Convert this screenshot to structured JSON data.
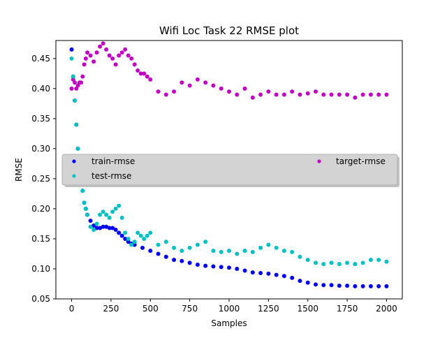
{
  "chart_data": {
    "type": "scatter",
    "title": "Wifi Loc Task 22 RMSE plot",
    "xlabel": "Samples",
    "ylabel": "RMSE",
    "xlim": [
      -100,
      2100
    ],
    "ylim": [
      0.05,
      0.48
    ],
    "xticks": [
      0,
      250,
      500,
      750,
      1000,
      1250,
      1500,
      1750,
      2000
    ],
    "yticks": [
      0.05,
      0.1,
      0.15,
      0.2,
      0.25,
      0.3,
      0.35,
      0.4,
      0.45
    ],
    "grid": false,
    "legend_position": "center",
    "series": [
      {
        "name": "train-rmse",
        "color": "#0000ee",
        "x": [
          0,
          10,
          20,
          30,
          40,
          50,
          60,
          70,
          80,
          90,
          100,
          120,
          140,
          160,
          180,
          200,
          220,
          240,
          260,
          280,
          300,
          320,
          340,
          360,
          380,
          400,
          450,
          500,
          550,
          600,
          650,
          700,
          750,
          800,
          850,
          900,
          950,
          1000,
          1050,
          1100,
          1150,
          1200,
          1250,
          1300,
          1350,
          1400,
          1450,
          1500,
          1550,
          1600,
          1650,
          1700,
          1750,
          1800,
          1850,
          1900,
          1950,
          2000
        ],
        "y": [
          0.465,
          0.42,
          0.38,
          0.34,
          0.3,
          0.27,
          0.25,
          0.23,
          0.21,
          0.2,
          0.19,
          0.18,
          0.172,
          0.168,
          0.168,
          0.17,
          0.17,
          0.168,
          0.168,
          0.165,
          0.16,
          0.155,
          0.15,
          0.145,
          0.142,
          0.14,
          0.135,
          0.13,
          0.125,
          0.12,
          0.115,
          0.113,
          0.11,
          0.107,
          0.105,
          0.104,
          0.103,
          0.102,
          0.1,
          0.097,
          0.094,
          0.093,
          0.092,
          0.09,
          0.088,
          0.085,
          0.08,
          0.077,
          0.074,
          0.073,
          0.073,
          0.072,
          0.072,
          0.071,
          0.071,
          0.071,
          0.071,
          0.071
        ]
      },
      {
        "name": "test-rmse",
        "color": "#00bfbf",
        "x": [
          0,
          10,
          20,
          30,
          40,
          50,
          60,
          70,
          80,
          90,
          100,
          120,
          140,
          160,
          180,
          200,
          220,
          240,
          260,
          280,
          300,
          320,
          340,
          360,
          380,
          400,
          420,
          440,
          460,
          480,
          500,
          550,
          600,
          650,
          700,
          750,
          800,
          850,
          900,
          950,
          1000,
          1050,
          1100,
          1150,
          1200,
          1250,
          1300,
          1350,
          1400,
          1450,
          1500,
          1550,
          1600,
          1650,
          1700,
          1750,
          1800,
          1850,
          1900,
          1950,
          2000
        ],
        "y": [
          0.45,
          0.42,
          0.38,
          0.34,
          0.3,
          0.27,
          0.25,
          0.23,
          0.21,
          0.2,
          0.19,
          0.17,
          0.165,
          0.175,
          0.19,
          0.195,
          0.19,
          0.185,
          0.195,
          0.2,
          0.205,
          0.185,
          0.16,
          0.15,
          0.14,
          0.145,
          0.16,
          0.155,
          0.15,
          0.155,
          0.16,
          0.14,
          0.145,
          0.135,
          0.13,
          0.135,
          0.14,
          0.145,
          0.13,
          0.128,
          0.13,
          0.125,
          0.13,
          0.128,
          0.135,
          0.14,
          0.135,
          0.13,
          0.128,
          0.12,
          0.115,
          0.11,
          0.108,
          0.11,
          0.108,
          0.11,
          0.108,
          0.11,
          0.115,
          0.115,
          0.112
        ]
      },
      {
        "name": "target-rmse",
        "color": "#bf00bf",
        "x": [
          0,
          10,
          20,
          30,
          40,
          50,
          60,
          70,
          80,
          90,
          100,
          120,
          140,
          160,
          180,
          200,
          220,
          240,
          260,
          280,
          300,
          320,
          340,
          360,
          380,
          400,
          420,
          440,
          460,
          480,
          500,
          550,
          600,
          650,
          700,
          750,
          800,
          850,
          900,
          950,
          1000,
          1050,
          1100,
          1150,
          1200,
          1250,
          1300,
          1350,
          1400,
          1450,
          1500,
          1550,
          1600,
          1650,
          1700,
          1750,
          1800,
          1850,
          1900,
          1950,
          2000
        ],
        "y": [
          0.4,
          0.415,
          0.41,
          0.4,
          0.405,
          0.41,
          0.41,
          0.42,
          0.44,
          0.45,
          0.46,
          0.455,
          0.445,
          0.46,
          0.47,
          0.475,
          0.465,
          0.455,
          0.45,
          0.44,
          0.455,
          0.46,
          0.465,
          0.455,
          0.45,
          0.44,
          0.43,
          0.425,
          0.425,
          0.42,
          0.415,
          0.395,
          0.39,
          0.395,
          0.41,
          0.405,
          0.415,
          0.41,
          0.405,
          0.4,
          0.395,
          0.39,
          0.4,
          0.385,
          0.39,
          0.395,
          0.39,
          0.39,
          0.395,
          0.39,
          0.392,
          0.395,
          0.39,
          0.39,
          0.39,
          0.39,
          0.385,
          0.39,
          0.39,
          0.39,
          0.39
        ]
      }
    ]
  }
}
